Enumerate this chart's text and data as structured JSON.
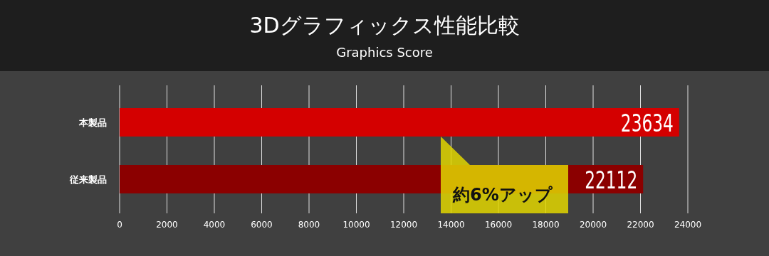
{
  "chart_data": {
    "type": "bar",
    "orientation": "horizontal",
    "title": "3Dグラフィックス性能比較",
    "subtitle": "Graphics Score",
    "categories": [
      "本製品",
      "従来製品"
    ],
    "values": [
      23634,
      22112
    ],
    "colors": [
      "#d40000",
      "#8b0000"
    ],
    "data_labels": true,
    "xlim": [
      0,
      24000
    ],
    "xticks": [
      0,
      2000,
      4000,
      6000,
      8000,
      10000,
      12000,
      14000,
      16000,
      18000,
      20000,
      22000,
      24000
    ],
    "grid": "x",
    "annotations": [
      "約6%アップ"
    ]
  }
}
